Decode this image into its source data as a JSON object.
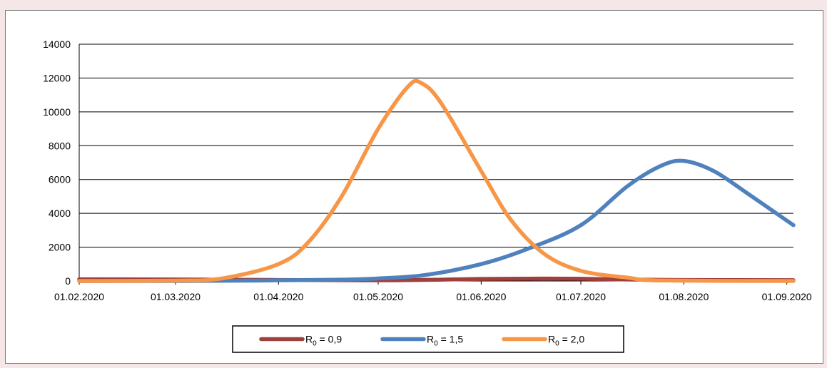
{
  "chart_data": {
    "type": "line",
    "title": "",
    "xlabel": "",
    "ylabel": "",
    "ylim": [
      0,
      14000
    ],
    "y_ticks": [
      "0",
      "2000",
      "4000",
      "6000",
      "8000",
      "10000",
      "12000",
      "14000"
    ],
    "x_ticks": [
      "01.02.2020",
      "01.03.2020",
      "01.04.2020",
      "01.05.2020",
      "01.06.2020",
      "01.07.2020",
      "01.08.2020",
      "01.09.2020"
    ],
    "xlim": [
      "2020-02-01",
      "2020-09-03"
    ],
    "grid": "horizontal",
    "legend_position": "bottom",
    "series": [
      {
        "name": "0,9",
        "color": "#a0403c",
        "x": [
          "2020-02-01",
          "2020-03-01",
          "2020-04-01",
          "2020-05-01",
          "2020-05-20",
          "2020-06-01",
          "2020-06-20",
          "2020-07-01",
          "2020-07-15",
          "2020-08-01",
          "2020-09-03"
        ],
        "values": [
          100,
          90,
          60,
          40,
          80,
          120,
          140,
          130,
          90,
          60,
          50
        ]
      },
      {
        "name": "1,5",
        "color": "#4f81bd",
        "x": [
          "2020-02-01",
          "2020-03-01",
          "2020-03-20",
          "2020-04-01",
          "2020-04-20",
          "2020-05-01",
          "2020-05-15",
          "2020-06-01",
          "2020-06-15",
          "2020-07-01",
          "2020-07-15",
          "2020-07-25",
          "2020-08-01",
          "2020-08-10",
          "2020-08-20",
          "2020-09-03"
        ],
        "values": [
          0,
          0,
          20,
          40,
          80,
          150,
          350,
          1000,
          1900,
          3300,
          5600,
          6800,
          7100,
          6500,
          5200,
          3300
        ]
      },
      {
        "name": "2,0",
        "color": "#f79646",
        "x": [
          "2020-02-01",
          "2020-03-01",
          "2020-03-15",
          "2020-04-01",
          "2020-04-10",
          "2020-04-20",
          "2020-05-01",
          "2020-05-10",
          "2020-05-14",
          "2020-05-20",
          "2020-06-01",
          "2020-06-10",
          "2020-06-20",
          "2020-07-01",
          "2020-07-15",
          "2020-07-25",
          "2020-09-03"
        ],
        "values": [
          0,
          20,
          150,
          1000,
          2300,
          5000,
          9000,
          11500,
          11700,
          10500,
          6500,
          3600,
          1600,
          600,
          200,
          30,
          0
        ]
      }
    ]
  },
  "legend": {
    "symbol": "R",
    "subscript": "0",
    "separator": " = "
  }
}
